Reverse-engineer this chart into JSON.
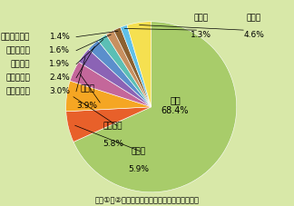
{
  "labels": [
    "英語",
    "日本語",
    "ドイツ語",
    "中国語",
    "フランス語",
    "スペイン語",
    "ロシア語",
    "イタリア語",
    "ポルトガル語",
    "韓国語",
    "その他"
  ],
  "values": [
    68.4,
    5.9,
    5.8,
    3.9,
    3.0,
    2.4,
    1.9,
    1.6,
    1.4,
    1.3,
    4.6
  ],
  "colors": [
    "#a8cc6a",
    "#e8602a",
    "#f5a623",
    "#c4679a",
    "#8b63b5",
    "#5b8fcc",
    "#5bbfb5",
    "#c89060",
    "#8b6030",
    "#60c0e8",
    "#f5e050"
  ],
  "background_color": "#d8e8a8",
  "title": "図表①、②　グローバルリーチ社資料により作成",
  "font_size": 6.5,
  "startangle": 90
}
